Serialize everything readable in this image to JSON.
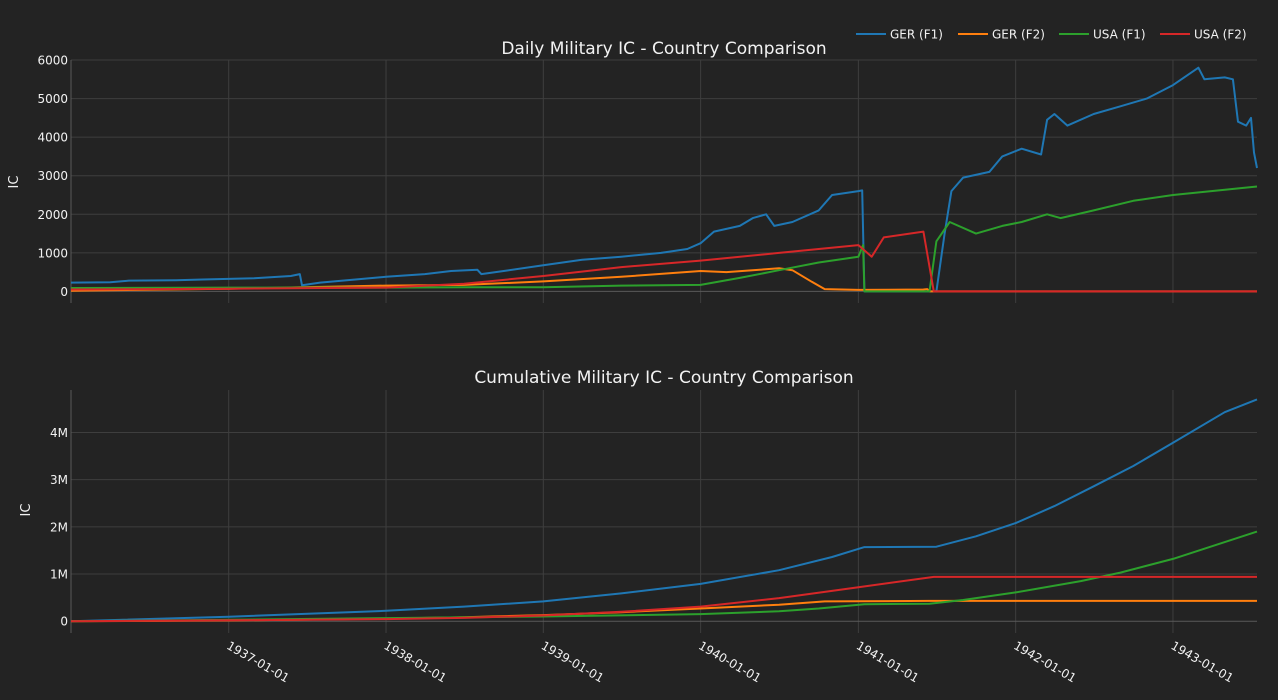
{
  "legend": {
    "placement": "top-right",
    "items": [
      {
        "label": "GER (F1)",
        "color": "#1f77b4"
      },
      {
        "label": "GER (F2)",
        "color": "#ff7f0e"
      },
      {
        "label": "USA (F1)",
        "color": "#2ca02c"
      },
      {
        "label": "USA (F2)",
        "color": "#d62728"
      }
    ]
  },
  "x_ticks": [
    "1937-01-01",
    "1938-01-01",
    "1939-01-01",
    "1940-01-01",
    "1941-01-01",
    "1942-01-01",
    "1943-01-01"
  ],
  "chart_data": [
    {
      "type": "line",
      "title": "Daily Military IC - Country Comparison",
      "xlabel": "",
      "ylabel": "IC",
      "grid": true,
      "xlim": [
        "1936-01-01",
        "1943-07-15"
      ],
      "ylim": [
        -300,
        6000
      ],
      "y_ticks": [
        0,
        1000,
        2000,
        3000,
        4000,
        5000,
        6000
      ],
      "y_tick_labels": [
        "0",
        "1000",
        "2000",
        "3000",
        "4000",
        "5000",
        "6000"
      ],
      "series": [
        {
          "name": "GER (F1)",
          "color": "#1f77b4",
          "points": [
            [
              "1936-01-01",
              230
            ],
            [
              "1936-04-01",
              240
            ],
            [
              "1936-05-15",
              280
            ],
            [
              "1936-09-01",
              290
            ],
            [
              "1936-11-01",
              310
            ],
            [
              "1937-03-01",
              340
            ],
            [
              "1937-05-25",
              400
            ],
            [
              "1937-06-15",
              450
            ],
            [
              "1937-06-20",
              160
            ],
            [
              "1937-08-01",
              230
            ],
            [
              "1937-11-01",
              320
            ],
            [
              "1938-01-01",
              380
            ],
            [
              "1938-04-01",
              450
            ],
            [
              "1938-06-01",
              530
            ],
            [
              "1938-08-01",
              560
            ],
            [
              "1938-08-10",
              450
            ],
            [
              "1938-10-01",
              530
            ],
            [
              "1939-01-01",
              680
            ],
            [
              "1939-04-01",
              820
            ],
            [
              "1939-07-01",
              900
            ],
            [
              "1939-10-01",
              1000
            ],
            [
              "1939-12-01",
              1100
            ],
            [
              "1940-01-01",
              1250
            ],
            [
              "1940-02-01",
              1550
            ],
            [
              "1940-04-01",
              1700
            ],
            [
              "1940-05-01",
              1900
            ],
            [
              "1940-06-01",
              2000
            ],
            [
              "1940-06-20",
              1700
            ],
            [
              "1940-08-01",
              1800
            ],
            [
              "1940-10-01",
              2100
            ],
            [
              "1940-11-01",
              2500
            ],
            [
              "1941-01-01",
              2600
            ],
            [
              "1941-01-10",
              2620
            ],
            [
              "1941-01-15",
              0
            ],
            [
              "1941-07-01",
              0
            ],
            [
              "1941-07-20",
              1500
            ],
            [
              "1941-08-05",
              2600
            ],
            [
              "1941-09-01",
              2950
            ],
            [
              "1941-11-01",
              3100
            ],
            [
              "1941-12-01",
              3500
            ],
            [
              "1942-01-15",
              3700
            ],
            [
              "1942-03-01",
              3550
            ],
            [
              "1942-03-15",
              4450
            ],
            [
              "1942-04-01",
              4600
            ],
            [
              "1942-05-01",
              4300
            ],
            [
              "1942-07-01",
              4600
            ],
            [
              "1942-09-01",
              4800
            ],
            [
              "1942-11-01",
              5000
            ],
            [
              "1943-01-01",
              5350
            ],
            [
              "1943-03-01",
              5800
            ],
            [
              "1943-03-15",
              5500
            ],
            [
              "1943-05-01",
              5550
            ],
            [
              "1943-05-20",
              5500
            ],
            [
              "1943-06-01",
              4400
            ],
            [
              "1943-06-20",
              4300
            ],
            [
              "1943-07-01",
              4500
            ],
            [
              "1943-07-08",
              3600
            ],
            [
              "1943-07-15",
              3200
            ]
          ]
        },
        {
          "name": "GER (F2)",
          "color": "#ff7f0e",
          "points": [
            [
              "1936-01-01",
              20
            ],
            [
              "1937-01-01",
              70
            ],
            [
              "1938-01-01",
              150
            ],
            [
              "1938-07-01",
              170
            ],
            [
              "1939-01-01",
              260
            ],
            [
              "1939-07-01",
              380
            ],
            [
              "1940-01-01",
              530
            ],
            [
              "1940-03-01",
              500
            ],
            [
              "1940-07-01",
              600
            ],
            [
              "1940-08-01",
              550
            ],
            [
              "1940-09-15",
              250
            ],
            [
              "1940-10-15",
              60
            ],
            [
              "1941-01-01",
              40
            ],
            [
              "1941-06-01",
              50
            ],
            [
              "1941-06-10",
              60
            ],
            [
              "1941-06-15",
              0
            ],
            [
              "1943-07-15",
              0
            ]
          ]
        },
        {
          "name": "USA (F1)",
          "color": "#2ca02c",
          "points": [
            [
              "1936-01-01",
              90
            ],
            [
              "1937-01-01",
              100
            ],
            [
              "1938-01-01",
              100
            ],
            [
              "1938-07-01",
              110
            ],
            [
              "1939-01-01",
              110
            ],
            [
              "1939-07-01",
              150
            ],
            [
              "1940-01-01",
              170
            ],
            [
              "1940-04-01",
              350
            ],
            [
              "1940-07-01",
              550
            ],
            [
              "1940-10-01",
              750
            ],
            [
              "1941-01-01",
              900
            ],
            [
              "1941-01-12",
              1200
            ],
            [
              "1941-01-15",
              0
            ],
            [
              "1941-06-15",
              0
            ],
            [
              "1941-07-01",
              1300
            ],
            [
              "1941-08-01",
              1800
            ],
            [
              "1941-10-01",
              1500
            ],
            [
              "1941-12-01",
              1700
            ],
            [
              "1942-01-15",
              1800
            ],
            [
              "1942-03-15",
              2000
            ],
            [
              "1942-04-15",
              1900
            ],
            [
              "1942-07-01",
              2100
            ],
            [
              "1942-10-01",
              2350
            ],
            [
              "1943-01-01",
              2500
            ],
            [
              "1943-07-15",
              2720
            ]
          ]
        },
        {
          "name": "USA (F2)",
          "color": "#d62728",
          "points": [
            [
              "1936-01-01",
              50
            ],
            [
              "1937-01-01",
              70
            ],
            [
              "1938-01-01",
              100
            ],
            [
              "1938-07-01",
              200
            ],
            [
              "1939-01-01",
              400
            ],
            [
              "1939-07-01",
              630
            ],
            [
              "1940-01-01",
              800
            ],
            [
              "1940-07-01",
              1000
            ],
            [
              "1941-01-01",
              1200
            ],
            [
              "1941-02-01",
              900
            ],
            [
              "1941-03-01",
              1400
            ],
            [
              "1941-06-01",
              1550
            ],
            [
              "1941-06-25",
              0
            ],
            [
              "1943-07-15",
              0
            ]
          ]
        }
      ]
    },
    {
      "type": "line",
      "title": "Cumulative Military IC - Country Comparison",
      "xlabel": "",
      "ylabel": "IC",
      "grid": true,
      "xlim": [
        "1936-01-01",
        "1943-07-15"
      ],
      "ylim": [
        -250000,
        4900000
      ],
      "y_ticks": [
        0,
        1000000,
        2000000,
        3000000,
        4000000
      ],
      "y_tick_labels": [
        "0",
        "1M",
        "2M",
        "3M",
        "4M"
      ],
      "series": [
        {
          "name": "GER (F1)",
          "color": "#1f77b4",
          "points": [
            [
              "1936-01-01",
              0
            ],
            [
              "1937-01-01",
              95000
            ],
            [
              "1938-01-01",
              220000
            ],
            [
              "1938-07-01",
              310000
            ],
            [
              "1939-01-01",
              420000
            ],
            [
              "1939-07-01",
              590000
            ],
            [
              "1940-01-01",
              790000
            ],
            [
              "1940-07-01",
              1080000
            ],
            [
              "1940-11-01",
              1360000
            ],
            [
              "1941-01-15",
              1570000
            ],
            [
              "1941-07-01",
              1580000
            ],
            [
              "1941-10-01",
              1800000
            ],
            [
              "1942-01-01",
              2080000
            ],
            [
              "1942-04-01",
              2440000
            ],
            [
              "1942-07-01",
              2860000
            ],
            [
              "1942-10-01",
              3290000
            ],
            [
              "1943-01-01",
              3780000
            ],
            [
              "1943-05-01",
              4430000
            ],
            [
              "1943-07-15",
              4700000
            ]
          ]
        },
        {
          "name": "GER (F2)",
          "color": "#ff7f0e",
          "points": [
            [
              "1936-01-01",
              0
            ],
            [
              "1937-01-01",
              15000
            ],
            [
              "1938-01-01",
              55000
            ],
            [
              "1938-07-01",
              85000
            ],
            [
              "1939-01-01",
              130000
            ],
            [
              "1939-07-01",
              190000
            ],
            [
              "1940-01-01",
              270000
            ],
            [
              "1940-07-01",
              350000
            ],
            [
              "1940-10-15",
              420000
            ],
            [
              "1941-06-15",
              430000
            ],
            [
              "1943-07-15",
              430000
            ]
          ]
        },
        {
          "name": "USA (F1)",
          "color": "#2ca02c",
          "points": [
            [
              "1936-01-01",
              0
            ],
            [
              "1937-01-01",
              30000
            ],
            [
              "1938-01-01",
              65000
            ],
            [
              "1939-01-01",
              100000
            ],
            [
              "1940-01-01",
              150000
            ],
            [
              "1940-07-01",
              210000
            ],
            [
              "1940-10-01",
              270000
            ],
            [
              "1941-01-15",
              360000
            ],
            [
              "1941-06-15",
              370000
            ],
            [
              "1941-09-01",
              450000
            ],
            [
              "1942-01-01",
              610000
            ],
            [
              "1942-06-01",
              850000
            ],
            [
              "1942-09-01",
              1030000
            ],
            [
              "1943-01-01",
              1320000
            ],
            [
              "1943-07-15",
              1900000
            ]
          ]
        },
        {
          "name": "USA (F2)",
          "color": "#d62728",
          "points": [
            [
              "1936-01-01",
              0
            ],
            [
              "1937-01-01",
              20000
            ],
            [
              "1938-01-01",
              45000
            ],
            [
              "1938-07-01",
              70000
            ],
            [
              "1939-01-01",
              120000
            ],
            [
              "1939-07-01",
              200000
            ],
            [
              "1940-01-01",
              310000
            ],
            [
              "1940-07-01",
              490000
            ],
            [
              "1941-01-01",
              720000
            ],
            [
              "1941-06-25",
              940000
            ],
            [
              "1943-07-15",
              940000
            ]
          ]
        }
      ]
    }
  ]
}
